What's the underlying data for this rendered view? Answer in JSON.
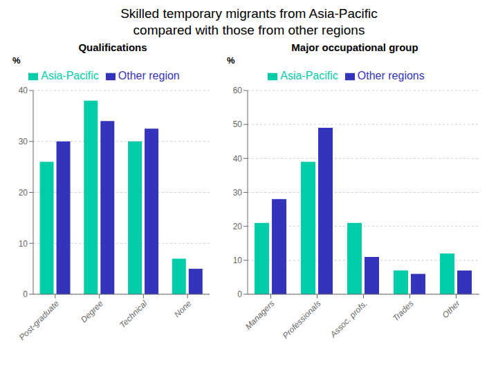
{
  "title": "Skilled temporary migrants from Asia-Pacific",
  "subtitle": "compared with those from other regions",
  "chart_data": [
    {
      "type": "bar",
      "title": "Qualifications",
      "ylabel": "%",
      "categories": [
        "Post-graduate",
        "Degree",
        "Technical",
        "None"
      ],
      "series": [
        {
          "name": "Asia-Pacific",
          "color": "#00CDA8",
          "values": [
            26,
            38,
            30,
            7
          ]
        },
        {
          "name": "Other region",
          "color": "#3333BB",
          "values": [
            30,
            34,
            32.5,
            5
          ]
        }
      ],
      "ylim": [
        0,
        40
      ],
      "yticks": [
        0,
        10,
        20,
        30,
        40
      ],
      "grid": true,
      "legend": "top"
    },
    {
      "type": "bar",
      "title": "Major occupational group",
      "ylabel": "%",
      "categories": [
        "Managers",
        "Professionals",
        "Assoc. profs.",
        "Trades",
        "Other"
      ],
      "series": [
        {
          "name": "Asia-Pacific",
          "color": "#00CDA8",
          "values": [
            21,
            39,
            21,
            7,
            12
          ]
        },
        {
          "name": "Other regions",
          "color": "#3333BB",
          "values": [
            28,
            49,
            11,
            6,
            7
          ]
        }
      ],
      "ylim": [
        0,
        60
      ],
      "yticks": [
        0,
        10,
        20,
        30,
        40,
        50,
        60
      ],
      "grid": true,
      "legend": "top"
    }
  ]
}
